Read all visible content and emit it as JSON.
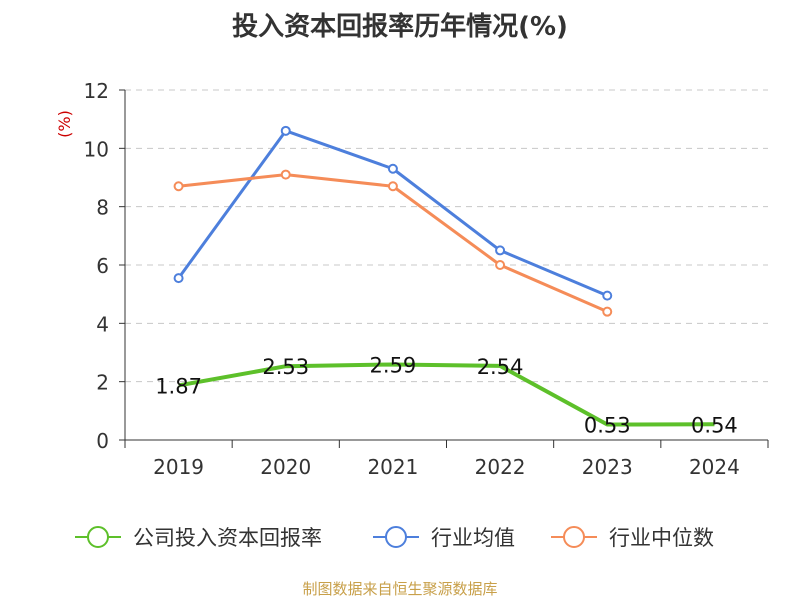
{
  "chart_data": {
    "type": "line",
    "title": "投入资本回报率历年情况(%)",
    "ylabel": "(%)",
    "xlabel": "",
    "categories": [
      "2019",
      "2020",
      "2021",
      "2022",
      "2023",
      "2024"
    ],
    "ylim": [
      0,
      12
    ],
    "yticks": [
      0,
      2,
      4,
      6,
      8,
      10,
      12
    ],
    "grid": true,
    "legend_position": "bottom",
    "series": [
      {
        "name": "公司投入资本回报率",
        "color": "#5dc02a",
        "values": [
          1.87,
          2.53,
          2.59,
          2.54,
          0.53,
          0.54
        ],
        "labels": [
          "1.87",
          "2.53",
          "2.59",
          "2.54",
          "0.53",
          "0.54"
        ]
      },
      {
        "name": "行业均值",
        "color": "#4d7fdc",
        "values": [
          5.55,
          10.6,
          9.3,
          6.5,
          4.95,
          null
        ]
      },
      {
        "name": "行业中位数",
        "color": "#f58c58",
        "values": [
          8.7,
          9.1,
          8.7,
          6.0,
          4.4,
          null
        ]
      }
    ]
  },
  "source": "制图数据来自恒生聚源数据库"
}
